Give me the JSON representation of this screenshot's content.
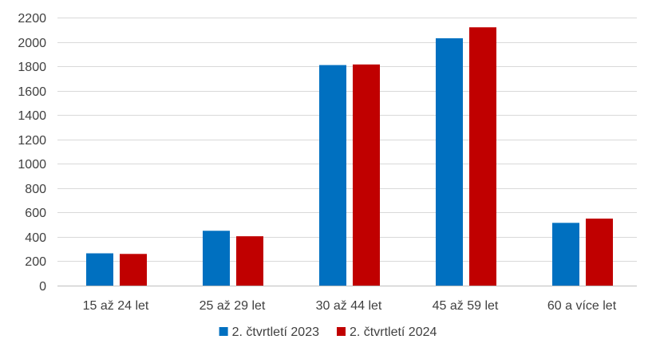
{
  "chart_data": {
    "type": "bar",
    "categories": [
      "15 až 24 let",
      "25 až 29 let",
      "30 až 44 let",
      "45 až 59 let",
      "60 a více let"
    ],
    "series": [
      {
        "name": "2. čtvrtletí 2023",
        "color": "#0070C0",
        "values": [
          265,
          450,
          1810,
          2030,
          515
        ]
      },
      {
        "name": "2. čtvrtletí 2024",
        "color": "#C00000",
        "values": [
          260,
          405,
          1815,
          2120,
          550
        ]
      }
    ],
    "ylim": [
      0,
      2200
    ],
    "yticks": [
      0,
      200,
      400,
      600,
      800,
      1000,
      1200,
      1400,
      1600,
      1800,
      2000,
      2200
    ],
    "grid": true,
    "legend_position": "bottom"
  }
}
